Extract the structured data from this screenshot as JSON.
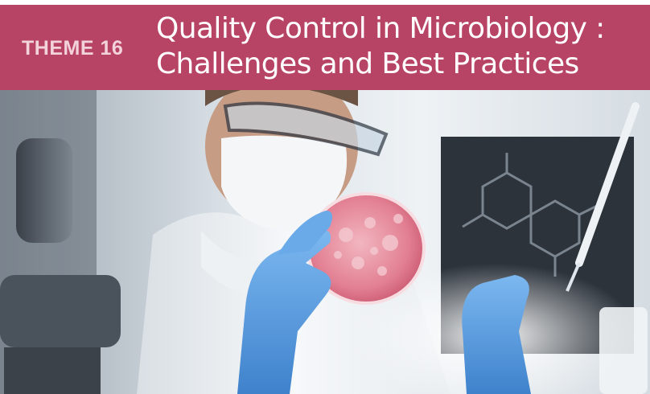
{
  "banner": {
    "theme_label": "THEME 16",
    "title_line1": "Quality Control in Microbiology :",
    "title_line2": "Challenges and Best Practices",
    "color": "#b84465"
  },
  "photo": {
    "subject": "scientist-with-petri-dish",
    "palette": {
      "glove": "#5a9fe0",
      "dish": "#e58a9a",
      "background": "#c9d3de",
      "board": "#2c333b"
    }
  }
}
